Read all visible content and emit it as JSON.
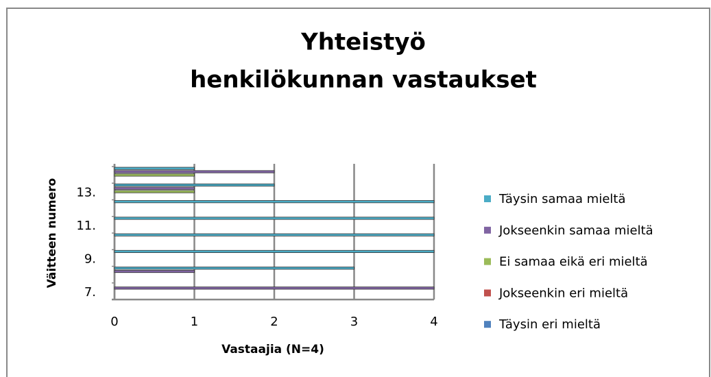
{
  "chart_data": {
    "type": "barh",
    "title": [
      "Yhteistyö",
      "henkilökunnan vastaukset"
    ],
    "x_label": "Vastaajia (N=4)",
    "y_label": "Väitteen numero",
    "categories": [
      "7.",
      null,
      "9.",
      null,
      "11.",
      null,
      "13.",
      null
    ],
    "series": [
      {
        "name": "Täysin eri mieltä",
        "color": "#4f81bd",
        "values": [
          0,
          0,
          0,
          0,
          0,
          0,
          0,
          0
        ]
      },
      {
        "name": "Jokseenkin eri mieltä",
        "color": "#c0504d",
        "values": [
          0,
          0,
          0,
          0,
          0,
          0,
          0,
          0
        ]
      },
      {
        "name": "Ei samaa eikä eri mieltä",
        "color": "#9bbb59",
        "values": [
          0,
          0,
          0,
          0,
          0,
          0,
          1,
          1
        ]
      },
      {
        "name": "Jokseenkin samaa mieltä",
        "color": "#8064a2",
        "values": [
          4,
          1,
          0,
          0,
          0,
          0,
          1,
          2
        ]
      },
      {
        "name": "Täysin samaa mieltä",
        "color": "#4bacc6",
        "values": [
          0,
          3,
          4,
          4,
          4,
          4,
          2,
          1
        ]
      }
    ],
    "xlim": [
      0,
      4
    ],
    "xticks": [
      0,
      1,
      2,
      3,
      4
    ],
    "grid": true,
    "legend": "right"
  }
}
